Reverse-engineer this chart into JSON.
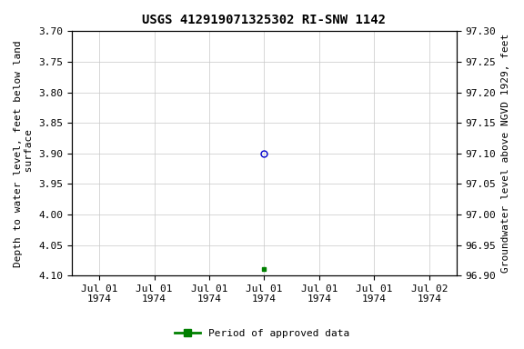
{
  "title": "USGS 412919071325302 RI-SNW 1142",
  "ylabel_left": "Depth to water level, feet below land\n surface",
  "ylabel_right": "Groundwater level above NGVD 1929, feet",
  "ylim_left": [
    4.1,
    3.7
  ],
  "ylim_right": [
    96.9,
    97.3
  ],
  "yticks_left": [
    3.7,
    3.75,
    3.8,
    3.85,
    3.9,
    3.95,
    4.0,
    4.05,
    4.1
  ],
  "yticks_right": [
    97.3,
    97.25,
    97.2,
    97.15,
    97.1,
    97.05,
    97.0,
    96.95,
    96.9
  ],
  "pt_open_x": 3,
  "pt_open_y": 3.9,
  "pt_open_color": "#0000cc",
  "pt_open_size": 5,
  "pt_filled_x": 3,
  "pt_filled_y": 4.09,
  "pt_filled_color": "#008000",
  "pt_filled_size": 3,
  "x_tick_labels": [
    "Jul 01\n1974",
    "Jul 01\n1974",
    "Jul 01\n1974",
    "Jul 01\n1974",
    "Jul 01\n1974",
    "Jul 01\n1974",
    "Jul 02\n1974"
  ],
  "legend_label": "Period of approved data",
  "legend_color": "#008000",
  "bg_color": "#ffffff",
  "grid_color": "#c8c8c8",
  "title_fontsize": 10,
  "axis_fontsize": 8,
  "tick_fontsize": 8,
  "num_ticks": 7,
  "xlim": [
    -0.5,
    6.5
  ]
}
